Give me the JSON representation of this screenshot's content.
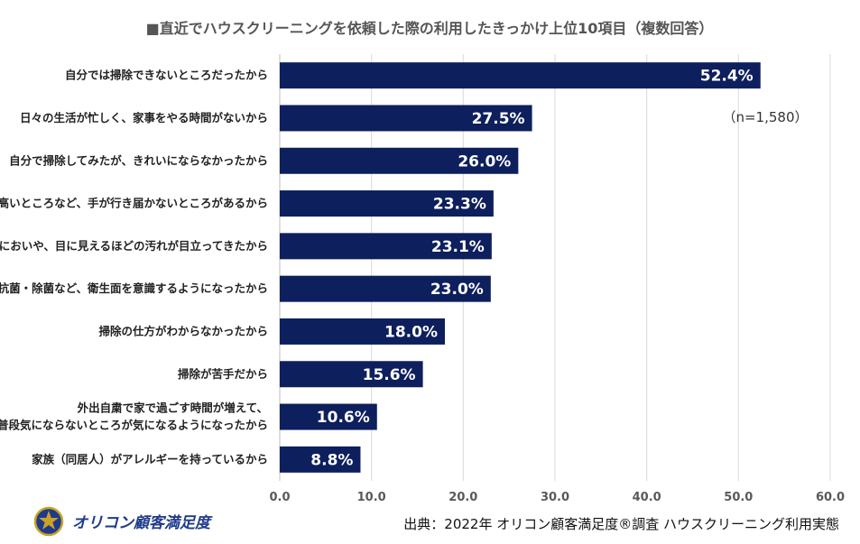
{
  "chart_data": {
    "type": "bar",
    "orientation": "horizontal",
    "title": "■直近でハウスクリーニングを依頼した際の利用したきっかけ上位10項目（複数回答）",
    "categories": [
      [
        "自分では掃除できないところだったから"
      ],
      [
        "日々の生活が忙しく、家事をやる時間がないから"
      ],
      [
        "自分で掃除してみたが、きれいにならなかったから"
      ],
      [
        "高いところなど、手が行き届かないところがあるから"
      ],
      [
        "においや、目に見えるほどの汚れが目立ってきたから"
      ],
      [
        "抗菌・除菌など、衛生面を意識するようになったから"
      ],
      [
        "掃除の仕方がわからなかったから"
      ],
      [
        "掃除が苦手だから"
      ],
      [
        "外出自粛で家で過ごす時間が増えて、",
        "普段気にならないところが気になるようになったから"
      ],
      [
        "家族（同居人）がアレルギーを持っているから"
      ]
    ],
    "values": [
      52.4,
      27.5,
      26.0,
      23.3,
      23.1,
      23.0,
      18.0,
      15.6,
      10.6,
      8.8
    ],
    "value_labels": [
      "52.4%",
      "27.5%",
      "26.0%",
      "23.3%",
      "23.1%",
      "23.0%",
      "18.0%",
      "15.6%",
      "10.6%",
      "8.8%"
    ],
    "xlim": [
      0,
      60
    ],
    "xticks": [
      "0.0",
      "10.0",
      "20.0",
      "30.0",
      "40.0",
      "50.0",
      "60.0"
    ],
    "bar_color": "#0d1f5c",
    "grid": true,
    "sample_note": "（n=1,580）"
  },
  "footer": {
    "brand": "オリコン顧客満足度",
    "source": "出典：2022年 オリコン顧客満足度®調査 ハウスクリーニング利用実態"
  },
  "colors": {
    "bar": "#0d1f5c",
    "brand": "#1e3a8a",
    "gold": "#c9a227"
  }
}
